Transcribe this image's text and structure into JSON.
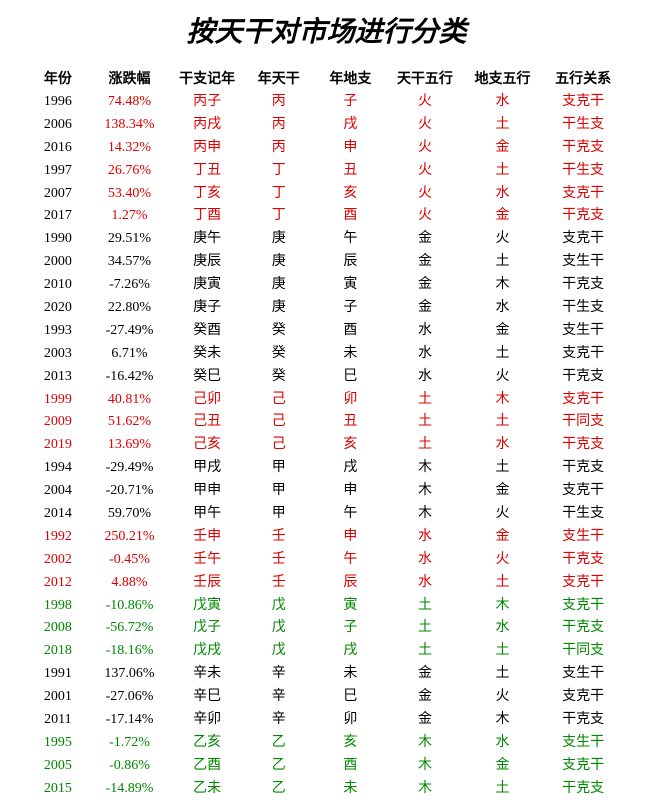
{
  "title": "按天干对市场进行分类",
  "headers": [
    "年份",
    "涨跌幅",
    "干支记年",
    "年天干",
    "年地支",
    "天干五行",
    "地支五行",
    "五行关系"
  ],
  "colors": {
    "red": "#dd0000",
    "black": "#000000",
    "green": "#008800"
  },
  "rows": [
    {
      "year": "1996",
      "pct": "74.48%",
      "gz": "丙子",
      "tg": "丙",
      "dz": "子",
      "tgwx": "火",
      "dzwx": "水",
      "wxgx": "支克干",
      "yc": "black",
      "pc": "red",
      "c": "red"
    },
    {
      "year": "2006",
      "pct": "138.34%",
      "gz": "丙戌",
      "tg": "丙",
      "dz": "戌",
      "tgwx": "火",
      "dzwx": "土",
      "wxgx": "干生支",
      "yc": "black",
      "pc": "red",
      "c": "red"
    },
    {
      "year": "2016",
      "pct": "14.32%",
      "gz": "丙申",
      "tg": "丙",
      "dz": "申",
      "tgwx": "火",
      "dzwx": "金",
      "wxgx": "干克支",
      "yc": "black",
      "pc": "red",
      "c": "red"
    },
    {
      "year": "1997",
      "pct": "26.76%",
      "gz": "丁丑",
      "tg": "丁",
      "dz": "丑",
      "tgwx": "火",
      "dzwx": "土",
      "wxgx": "干生支",
      "yc": "black",
      "pc": "red",
      "c": "red"
    },
    {
      "year": "2007",
      "pct": "53.40%",
      "gz": "丁亥",
      "tg": "丁",
      "dz": "亥",
      "tgwx": "火",
      "dzwx": "水",
      "wxgx": "支克干",
      "yc": "black",
      "pc": "red",
      "c": "red"
    },
    {
      "year": "2017",
      "pct": "1.27%",
      "gz": "丁酉",
      "tg": "丁",
      "dz": "酉",
      "tgwx": "火",
      "dzwx": "金",
      "wxgx": "干克支",
      "yc": "black",
      "pc": "red",
      "c": "red"
    },
    {
      "year": "1990",
      "pct": "29.51%",
      "gz": "庚午",
      "tg": "庚",
      "dz": "午",
      "tgwx": "金",
      "dzwx": "火",
      "wxgx": "支克干",
      "yc": "black",
      "pc": "black",
      "c": "black"
    },
    {
      "year": "2000",
      "pct": "34.57%",
      "gz": "庚辰",
      "tg": "庚",
      "dz": "辰",
      "tgwx": "金",
      "dzwx": "土",
      "wxgx": "支生干",
      "yc": "black",
      "pc": "black",
      "c": "black"
    },
    {
      "year": "2010",
      "pct": "-7.26%",
      "gz": "庚寅",
      "tg": "庚",
      "dz": "寅",
      "tgwx": "金",
      "dzwx": "木",
      "wxgx": "干克支",
      "yc": "black",
      "pc": "black",
      "c": "black"
    },
    {
      "year": "2020",
      "pct": "22.80%",
      "gz": "庚子",
      "tg": "庚",
      "dz": "子",
      "tgwx": "金",
      "dzwx": "水",
      "wxgx": "干生支",
      "yc": "black",
      "pc": "black",
      "c": "black"
    },
    {
      "year": "1993",
      "pct": "-27.49%",
      "gz": "癸酉",
      "tg": "癸",
      "dz": "酉",
      "tgwx": "水",
      "dzwx": "金",
      "wxgx": "支生干",
      "yc": "black",
      "pc": "black",
      "c": "black"
    },
    {
      "year": "2003",
      "pct": "6.71%",
      "gz": "癸未",
      "tg": "癸",
      "dz": "未",
      "tgwx": "水",
      "dzwx": "土",
      "wxgx": "支克干",
      "yc": "black",
      "pc": "black",
      "c": "black"
    },
    {
      "year": "2013",
      "pct": "-16.42%",
      "gz": "癸巳",
      "tg": "癸",
      "dz": "巳",
      "tgwx": "水",
      "dzwx": "火",
      "wxgx": "干克支",
      "yc": "black",
      "pc": "black",
      "c": "black"
    },
    {
      "year": "1999",
      "pct": "40.81%",
      "gz": "己卯",
      "tg": "己",
      "dz": "卯",
      "tgwx": "土",
      "dzwx": "木",
      "wxgx": "支克干",
      "yc": "red",
      "pc": "red",
      "c": "red"
    },
    {
      "year": "2009",
      "pct": "51.62%",
      "gz": "己丑",
      "tg": "己",
      "dz": "丑",
      "tgwx": "土",
      "dzwx": "土",
      "wxgx": "干同支",
      "yc": "red",
      "pc": "red",
      "c": "red"
    },
    {
      "year": "2019",
      "pct": "13.69%",
      "gz": "己亥",
      "tg": "己",
      "dz": "亥",
      "tgwx": "土",
      "dzwx": "水",
      "wxgx": "干克支",
      "yc": "red",
      "pc": "red",
      "c": "red"
    },
    {
      "year": "1994",
      "pct": "-29.49%",
      "gz": "甲戌",
      "tg": "甲",
      "dz": "戌",
      "tgwx": "木",
      "dzwx": "土",
      "wxgx": "干克支",
      "yc": "black",
      "pc": "black",
      "c": "black"
    },
    {
      "year": "2004",
      "pct": "-20.71%",
      "gz": "甲申",
      "tg": "甲",
      "dz": "申",
      "tgwx": "木",
      "dzwx": "金",
      "wxgx": "支克干",
      "yc": "black",
      "pc": "black",
      "c": "black"
    },
    {
      "year": "2014",
      "pct": "59.70%",
      "gz": "甲午",
      "tg": "甲",
      "dz": "午",
      "tgwx": "木",
      "dzwx": "火",
      "wxgx": "干生支",
      "yc": "black",
      "pc": "black",
      "c": "black"
    },
    {
      "year": "1992",
      "pct": "250.21%",
      "gz": "壬申",
      "tg": "壬",
      "dz": "申",
      "tgwx": "水",
      "dzwx": "金",
      "wxgx": "支生干",
      "yc": "red",
      "pc": "red",
      "c": "red"
    },
    {
      "year": "2002",
      "pct": "-0.45%",
      "gz": "壬午",
      "tg": "壬",
      "dz": "午",
      "tgwx": "水",
      "dzwx": "火",
      "wxgx": "干克支",
      "yc": "red",
      "pc": "red",
      "c": "red"
    },
    {
      "year": "2012",
      "pct": "4.88%",
      "gz": "壬辰",
      "tg": "壬",
      "dz": "辰",
      "tgwx": "水",
      "dzwx": "土",
      "wxgx": "支克干",
      "yc": "red",
      "pc": "red",
      "c": "red"
    },
    {
      "year": "1998",
      "pct": "-10.86%",
      "gz": "戊寅",
      "tg": "戊",
      "dz": "寅",
      "tgwx": "土",
      "dzwx": "木",
      "wxgx": "支克干",
      "yc": "green",
      "pc": "green",
      "c": "green"
    },
    {
      "year": "2008",
      "pct": "-56.72%",
      "gz": "戊子",
      "tg": "戊",
      "dz": "子",
      "tgwx": "土",
      "dzwx": "水",
      "wxgx": "干克支",
      "yc": "green",
      "pc": "green",
      "c": "green"
    },
    {
      "year": "2018",
      "pct": "-18.16%",
      "gz": "戊戌",
      "tg": "戊",
      "dz": "戌",
      "tgwx": "土",
      "dzwx": "土",
      "wxgx": "干同支",
      "yc": "green",
      "pc": "green",
      "c": "green"
    },
    {
      "year": "1991",
      "pct": "137.06%",
      "gz": "辛未",
      "tg": "辛",
      "dz": "未",
      "tgwx": "金",
      "dzwx": "土",
      "wxgx": "支生干",
      "yc": "black",
      "pc": "black",
      "c": "black"
    },
    {
      "year": "2001",
      "pct": "-27.06%",
      "gz": "辛巳",
      "tg": "辛",
      "dz": "巳",
      "tgwx": "金",
      "dzwx": "火",
      "wxgx": "支克干",
      "yc": "black",
      "pc": "black",
      "c": "black"
    },
    {
      "year": "2011",
      "pct": "-17.14%",
      "gz": "辛卯",
      "tg": "辛",
      "dz": "卯",
      "tgwx": "金",
      "dzwx": "木",
      "wxgx": "干克支",
      "yc": "black",
      "pc": "black",
      "c": "black"
    },
    {
      "year": "1995",
      "pct": "-1.72%",
      "gz": "乙亥",
      "tg": "乙",
      "dz": "亥",
      "tgwx": "木",
      "dzwx": "水",
      "wxgx": "支生干",
      "yc": "green",
      "pc": "green",
      "c": "green"
    },
    {
      "year": "2005",
      "pct": "-0.86%",
      "gz": "乙酉",
      "tg": "乙",
      "dz": "酉",
      "tgwx": "木",
      "dzwx": "金",
      "wxgx": "支克干",
      "yc": "green",
      "pc": "green",
      "c": "green"
    },
    {
      "year": "2015",
      "pct": "-14.89%",
      "gz": "乙未",
      "tg": "乙",
      "dz": "未",
      "tgwx": "木",
      "dzwx": "土",
      "wxgx": "干克支",
      "yc": "green",
      "pc": "green",
      "c": "green"
    }
  ]
}
